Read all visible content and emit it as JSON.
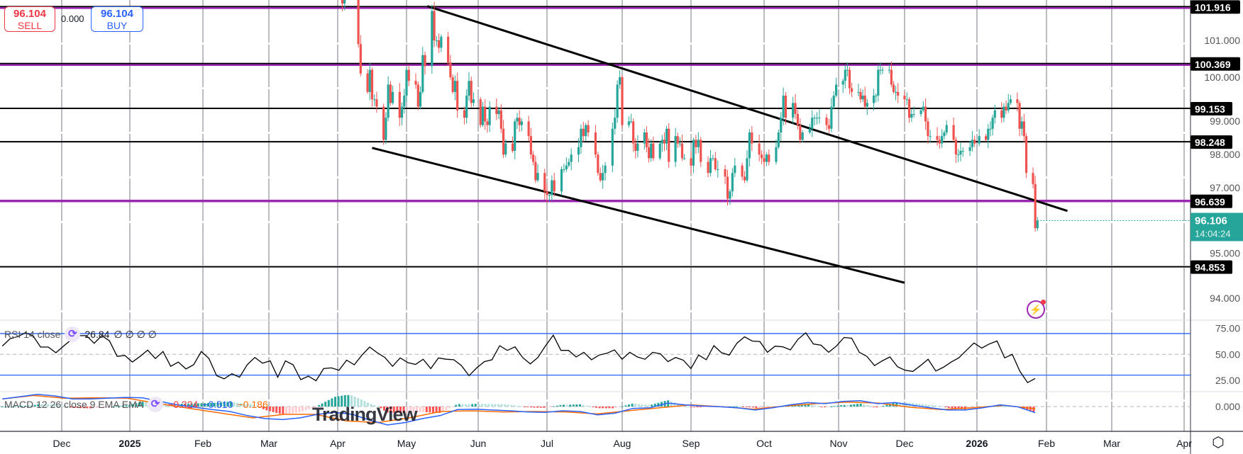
{
  "toolbar": {
    "sell_price": "96.104",
    "sell_label": "SELL",
    "spread": "0.000",
    "buy_price": "96.104",
    "buy_label": "BUY"
  },
  "branding": {
    "logo": "TradingView"
  },
  "icons": {
    "alert": "lightning-icon",
    "settings": "hexagon-settings-icon",
    "indicator_toggle": "cycle-icon"
  },
  "colors": {
    "up": "#26a69a",
    "down": "#ef5350",
    "level_purple": "#9c27b0",
    "level_black": "#000000",
    "rsi_band": "#2962ff",
    "macd": "#2962ff",
    "signal": "#ff6d00",
    "last_price": "#26a69a"
  },
  "chart_data": [
    {
      "type": "candlestick",
      "pane": "price",
      "first_date": "2025-04-01",
      "last_date": "2026-01-28",
      "close": [
        104.2,
        103.8,
        102.0,
        103.0,
        103.3,
        102.9,
        102.9,
        100.9,
        100.1,
        99.6,
        100.2,
        99.4,
        99.4,
        99.2,
        98.3,
        98.9,
        99.8,
        99.3,
        99.6,
        98.9,
        99.2,
        99.5,
        100.2,
        99.9,
        99.8,
        99.2,
        99.6,
        100.6,
        100.3,
        101.8,
        101.0,
        101.0,
        100.8,
        101.1,
        100.4,
        100.0,
        99.6,
        99.9,
        99.1,
        98.9,
        99.5,
        99.9,
        99.3,
        99.4,
        98.7,
        99.2,
        98.8,
        98.7,
        99.2,
        99.0,
        99.1,
        98.6,
        97.9,
        98.2,
        98.0,
        98.8,
        98.9,
        98.7,
        98.8,
        98.4,
        97.9,
        97.7,
        97.2,
        97.4,
        96.9,
        96.8,
        96.8,
        97.2,
        96.9,
        97.5,
        97.5,
        97.6,
        97.7,
        97.9,
        98.1,
        98.6,
        98.4,
        98.7,
        98.5,
        97.9,
        97.4,
        97.2,
        97.4,
        97.6,
        98.6,
        98.9,
        99.8,
        100.0,
        98.7,
        98.8,
        98.8,
        98.2,
        98.0,
        98.2,
        98.5,
        98.1,
        97.8,
        98.2,
        97.8,
        98.2,
        98.3,
        98.2,
        98.6,
        97.7,
        98.4,
        98.2,
        98.2,
        97.8,
        97.8,
        97.6,
        98.3,
        98.1,
        98.3,
        97.7,
        97.4,
        97.8,
        97.8,
        97.5,
        97.5,
        97.3,
        96.7,
        96.9,
        97.4,
        97.6,
        97.3,
        97.2,
        97.8,
        98.5,
        98.2,
        97.9,
        97.8,
        97.7,
        97.9,
        97.7,
        98.1,
        98.5,
        98.9,
        99.5,
        98.9,
        99.3,
        99.0,
        98.7,
        98.3,
        98.5,
        98.6,
        98.9,
        98.9,
        98.9,
        98.9,
        98.7,
        98.6,
        99.2,
        99.5,
        99.8,
        99.9,
        100.2,
        100.2,
        99.7,
        99.6,
        99.6,
        99.4,
        99.5,
        99.2,
        99.3,
        99.5,
        99.5,
        100.2,
        100.2,
        100.2,
        100.2,
        99.8,
        99.6,
        99.6,
        99.5,
        99.4,
        99.4,
        98.9,
        99.0,
        99.0,
        99.1,
        99.2,
        98.8,
        98.4,
        98.4,
        98.3,
        98.2,
        98.4,
        98.5,
        98.7,
        98.3,
        97.9,
        97.9,
        98.0,
        98.0,
        98.1,
        98.3,
        98.2,
        98.4,
        98.3,
        98.6,
        98.6,
        98.9,
        99.1,
        98.9,
        99.2,
        99.1,
        99.3,
        99.4,
        99.3,
        98.6,
        98.8,
        98.4,
        97.4,
        97.1,
        95.9,
        96.106
      ],
      "last_price": "96.106",
      "countdown": "14:04:24",
      "y_ticks": [
        "101.000",
        "100.000",
        "99.000",
        "98.000",
        "97.000",
        "95.000",
        "94.000"
      ],
      "y_tick_values": [
        101,
        100,
        99,
        98,
        97,
        95,
        94
      ],
      "ylim": [
        93.3,
        102.1
      ],
      "levels": [
        {
          "value": 101.916,
          "label": "101.916",
          "color": "black+purple"
        },
        {
          "value": 100.369,
          "label": "100.369",
          "color": "black+purple"
        },
        {
          "value": 99.153,
          "label": "99.153",
          "color": "black"
        },
        {
          "value": 98.248,
          "label": "98.248",
          "color": "black"
        },
        {
          "value": 96.639,
          "label": "96.639",
          "color": "purple"
        },
        {
          "value": 94.853,
          "label": "94.853",
          "color": "black"
        }
      ],
      "trendlines": [
        {
          "from": [
            "2025-05-10",
            101.93
          ],
          "to": [
            "2026-02-10",
            96.37
          ]
        },
        {
          "from": [
            "2025-04-16",
            98.08
          ],
          "to": [
            "2025-12-01",
            94.42
          ]
        }
      ]
    },
    {
      "type": "line",
      "pane": "rsi",
      "legend": {
        "title": "RSI 14 close",
        "value": "26.84",
        "extras": "∅ ∅ ∅ ∅"
      },
      "first_date": "2024-11-04",
      "last_date": "2026-01-27",
      "values": [
        58,
        65,
        67,
        70.7,
        68,
        57,
        57,
        51.6,
        58,
        64,
        68,
        68,
        60.6,
        68,
        63,
        48,
        49,
        42.6,
        48,
        54,
        46,
        52.7,
        38.5,
        42.6,
        36,
        40,
        52.7,
        46,
        29.5,
        26.4,
        31.4,
        28,
        40,
        47,
        41.5,
        43.7,
        28,
        43.7,
        40,
        25.7,
        29,
        24.6,
        36.3,
        37,
        34.7,
        44.4,
        40,
        49.3,
        57,
        51.6,
        47,
        38.5,
        46.6,
        42,
        40.3,
        45.3,
        36.3,
        46.6,
        45.3,
        44.8,
        39.2,
        29.5,
        37,
        43,
        44.8,
        58.3,
        53.8,
        57.2,
        47,
        40.8,
        47,
        58.3,
        68.4,
        53.8,
        53.8,
        47.5,
        52,
        44.8,
        49.3,
        51,
        54.3,
        45.3,
        52,
        47.5,
        45.3,
        52,
        50.5,
        43,
        47,
        44.4,
        36.3,
        49.3,
        44.8,
        58.3,
        51.6,
        49.3,
        60.6,
        66.9,
        62.8,
        62.3,
        52,
        57.9,
        57.2,
        54.3,
        64.6,
        70.7,
        60,
        58.8,
        52,
        57.9,
        66.2,
        65.5,
        52,
        48,
        39.2,
        43.7,
        47.5,
        38,
        34.7,
        33.6,
        39.2,
        45.3,
        34,
        37.6,
        42.6,
        46.6,
        53.8,
        61,
        56,
        60,
        62.8,
        46.6,
        50,
        33.6,
        22.8,
        26.84
      ],
      "bands": [
        70,
        30
      ],
      "midline": 50,
      "y_ticks": [
        "75.00",
        "50.00",
        "25.00"
      ],
      "y_tick_values": [
        75,
        50,
        25
      ]
    },
    {
      "type": "line+histogram",
      "pane": "macd",
      "legend": {
        "title": "MACD 12 26 close 9 EMA EMA",
        "histogram": "−0.324",
        "macd": "−0.510",
        "signal": "−0.186"
      },
      "first_date": "2024-11-04",
      "last_date": "2026-01-27",
      "macd": [
        0.63,
        0.82,
        1.02,
        0.88,
        0.63,
        0.63,
        0.69,
        0.76,
        0.73,
        0.43,
        0.14,
        -0.06,
        -0.25,
        -0.41,
        -0.75,
        -1.0,
        -1.08,
        -0.94,
        -0.65,
        -0.49,
        -0.65,
        -1.14,
        -1.53,
        -1.33,
        -1.0,
        -0.75,
        -0.25,
        -0.22,
        -0.29,
        -0.35,
        -0.45,
        -0.49,
        -0.35,
        -0.41,
        -0.69,
        -0.55,
        -0.16,
        -0.1,
        0.29,
        0.14,
        0.04,
        -0.02,
        -0.1,
        -0.29,
        -0.1,
        0.14,
        0.33,
        0.24,
        0.43,
        0.49,
        0.24,
        0.33,
        0.1,
        -0.1,
        -0.29,
        -0.29,
        -0.1,
        0.14,
        -0.02,
        -0.51
      ],
      "signal": [
        0.63,
        0.92,
        0.69,
        0.73,
        0.69,
        0.24,
        -0.16,
        -0.55,
        -0.94,
        -0.65,
        -0.65,
        -1.2,
        -1.33,
        -0.94,
        -0.41,
        -0.35,
        -0.45,
        -0.41,
        -0.45,
        -0.61,
        -0.35,
        -0.1,
        0.14,
        -0.02,
        -0.22,
        0.04,
        0.24,
        0.37,
        0.29,
        -0.06,
        -0.25,
        -0.1,
        0.1,
        -0.186
      ],
      "y_ticks": [
        "0.000"
      ],
      "y_tick_values": [
        0
      ]
    }
  ],
  "time_axis": [
    {
      "label": "Dec",
      "date": "2024-12-01",
      "bold": false
    },
    {
      "label": "2025",
      "date": "2025-01-01",
      "bold": true
    },
    {
      "label": "Feb",
      "date": "2025-02-01",
      "bold": false
    },
    {
      "label": "Mar",
      "date": "2025-03-01",
      "bold": false
    },
    {
      "label": "Apr",
      "date": "2025-04-01",
      "bold": false
    },
    {
      "label": "May",
      "date": "2025-05-01",
      "bold": false
    },
    {
      "label": "Jun",
      "date": "2025-06-01",
      "bold": false
    },
    {
      "label": "Jul",
      "date": "2025-07-01",
      "bold": false
    },
    {
      "label": "Aug",
      "date": "2025-08-01",
      "bold": false
    },
    {
      "label": "Sep",
      "date": "2025-09-01",
      "bold": false
    },
    {
      "label": "Oct",
      "date": "2025-10-01",
      "bold": false
    },
    {
      "label": "Nov",
      "date": "2025-11-01",
      "bold": false
    },
    {
      "label": "Dec",
      "date": "2025-12-01",
      "bold": false
    },
    {
      "label": "2026",
      "date": "2026-01-01",
      "bold": true
    },
    {
      "label": "Feb",
      "date": "2026-02-01",
      "bold": false
    },
    {
      "label": "Mar",
      "date": "2026-03-01",
      "bold": false
    },
    {
      "label": "Apr",
      "date": "2026-04-01",
      "bold": false
    }
  ]
}
